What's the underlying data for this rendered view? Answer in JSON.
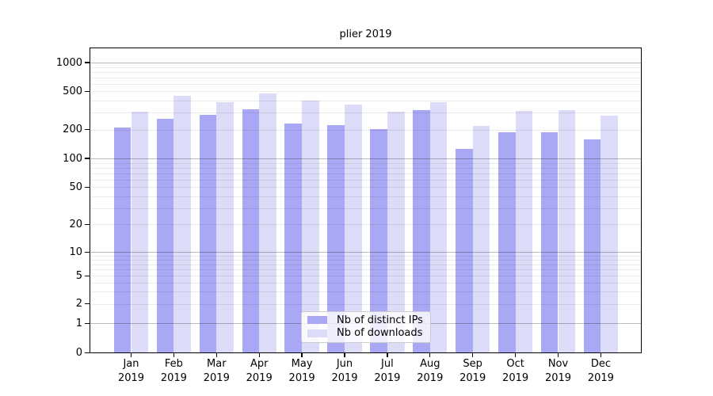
{
  "chart_data": {
    "type": "bar",
    "title": "plier 2019",
    "categories": [
      "Jan",
      "Feb",
      "Mar",
      "Apr",
      "May",
      "Jun",
      "Jul",
      "Aug",
      "Sep",
      "Oct",
      "Nov",
      "Dec"
    ],
    "category_year": "2019",
    "series": [
      {
        "name": "Nb of distinct IPs",
        "color": "#a8a8f4",
        "values": [
          210,
          258,
          285,
          324,
          231,
          221,
          203,
          322,
          126,
          188,
          188,
          158
        ]
      },
      {
        "name": "Nb of downloads",
        "color": "#dcdcf9",
        "values": [
          305,
          450,
          385,
          472,
          402,
          367,
          307,
          384,
          217,
          313,
          317,
          279
        ]
      }
    ],
    "yticks": [
      0,
      1,
      2,
      5,
      10,
      20,
      50,
      100,
      200,
      500,
      1000
    ],
    "yscale": "symlog",
    "ylim": [
      0,
      1400
    ],
    "xlabel": "",
    "ylabel": "",
    "grid": "horizontal, darker lines at decades, faint minor log lines",
    "legend_position": "bottom-center inside plot",
    "colors": {
      "axis": "#000000",
      "grid_major": "#bdbdbd",
      "grid_minor": "#ececec",
      "background": "#ffffff"
    }
  }
}
